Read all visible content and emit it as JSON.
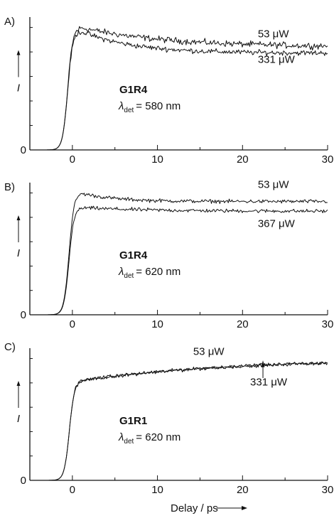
{
  "chart_data": [
    {
      "type": "line",
      "panel_label": "A)",
      "ylabel": "I",
      "xlim": [
        -5,
        30
      ],
      "ylim": [
        0,
        1.05
      ],
      "xticks": [
        0,
        10,
        20,
        30
      ],
      "y_zero_label": "0",
      "sample": "G1R4",
      "detection": {
        "symbol": "λ",
        "sub": "det",
        "value": "= 580 nm"
      },
      "series": [
        {
          "name": "53 μW",
          "rise_center": -0.55,
          "rise_width": 0.3,
          "peak_time": 1.0,
          "peak": 1.0,
          "plateau": 0.84,
          "tau": 10,
          "noise": 0.022,
          "slope": 0
        },
        {
          "name": "331 μW",
          "rise_center": -0.55,
          "rise_width": 0.3,
          "peak_time": 1.0,
          "peak": 0.97,
          "plateau": 0.79,
          "tau": 6,
          "noise": 0.018,
          "slope": 0
        }
      ],
      "annotations": [
        {
          "text": "53 μW",
          "x": 21.8,
          "y": 0.92
        },
        {
          "text": "331 μW",
          "x": 21.8,
          "y": 0.71
        }
      ]
    },
    {
      "type": "line",
      "panel_label": "B)",
      "ylabel": "I",
      "xlim": [
        -5,
        30
      ],
      "ylim": [
        0,
        1.05
      ],
      "xticks": [
        0,
        10,
        20,
        30
      ],
      "y_zero_label": "0",
      "sample": "G1R4",
      "detection": {
        "symbol": "λ",
        "sub": "det",
        "value": "= 620 nm"
      },
      "series": [
        {
          "name": "53 μW",
          "rise_center": -0.4,
          "rise_width": 0.3,
          "peak_time": 1.0,
          "peak": 1.0,
          "plateau": 0.93,
          "tau": 4,
          "noise": 0.013,
          "slope": 0
        },
        {
          "name": "367 μW",
          "rise_center": -0.4,
          "rise_width": 0.3,
          "peak_time": 1.0,
          "peak": 0.88,
          "plateau": 0.85,
          "tau": 8,
          "noise": 0.013,
          "slope": 0
        }
      ],
      "annotations": [
        {
          "text": "53 μW",
          "x": 21.8,
          "y": 1.04
        },
        {
          "text": "367 μW",
          "x": 21.8,
          "y": 0.72
        }
      ]
    },
    {
      "type": "line",
      "panel_label": "C)",
      "ylabel": "I",
      "xlim": [
        -5,
        30
      ],
      "ylim": [
        0,
        1.05
      ],
      "xticks": [
        0,
        10,
        20,
        30
      ],
      "y_zero_label": "0",
      "sample": "G1R1",
      "detection": {
        "symbol": "λ",
        "sub": "det",
        "value": "= 620 nm"
      },
      "xlabel": "Delay / ps",
      "series": [
        {
          "name": "53 μW",
          "rise_center": -0.35,
          "rise_width": 0.3,
          "peak_time": 1.0,
          "peak": 0.82,
          "plateau": 1.0,
          "tau": 18,
          "noise": 0.012,
          "slope": 0
        },
        {
          "name": "331 μW",
          "rise_center": -0.35,
          "rise_width": 0.3,
          "peak_time": 1.0,
          "peak": 0.82,
          "plateau": 1.0,
          "tau": 18,
          "noise": 0.012,
          "slope": 0
        }
      ],
      "annotations": [
        {
          "text": "53 μW",
          "x": 14.2,
          "y": 1.03
        },
        {
          "text": "331 μW",
          "x": 20.9,
          "y": 0.78
        }
      ],
      "arrow_at": 22.4
    }
  ]
}
